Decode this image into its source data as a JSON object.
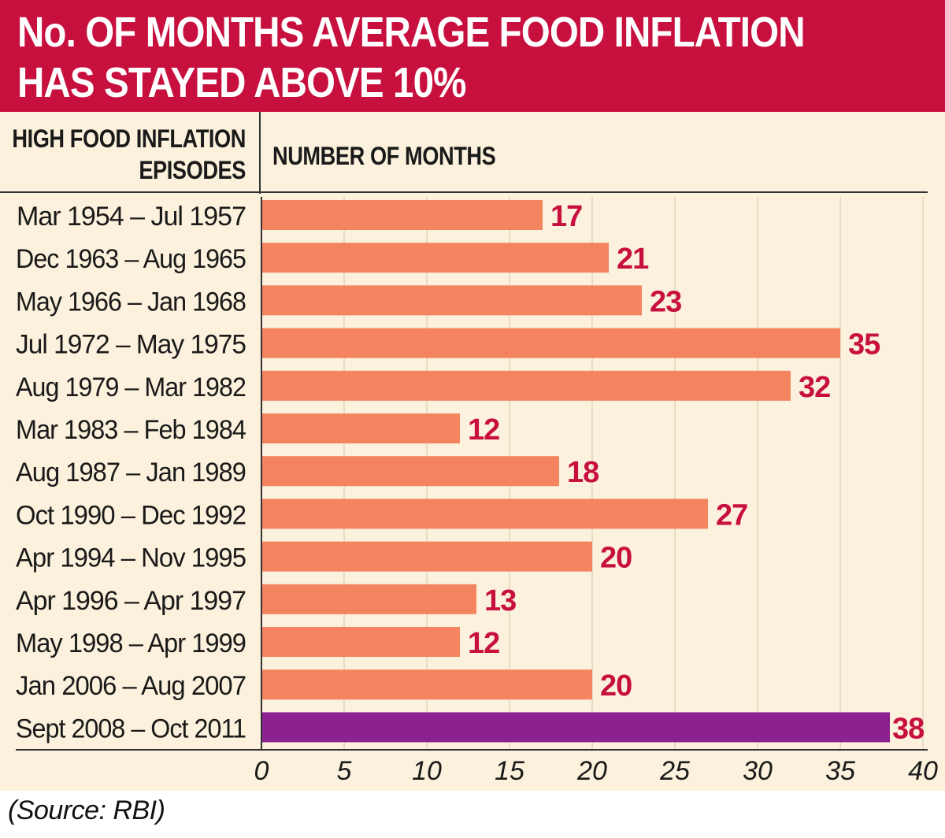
{
  "title": {
    "line1": "No. OF MONTHS AVERAGE FOOD INFLATION",
    "line2": "HAS STAYED ABOVE 10%"
  },
  "headers": {
    "left_line1": "HIGH FOOD INFLATION",
    "left_line2": "EPISODES",
    "right": "NUMBER OF MONTHS"
  },
  "source": "(Source: RBI)",
  "colors": {
    "banner": "#c8103f",
    "bar": "#f4845f",
    "highlight_bar": "#8c2290",
    "value_label": "#c8103f",
    "panel_bg": "#fbf1dc"
  },
  "chart_data": {
    "type": "bar",
    "orientation": "horizontal",
    "categories": [
      "Mar 1954 – Jul 1957",
      "Dec 1963 – Aug 1965",
      "May 1966 – Jan 1968",
      "Jul 1972 – May 1975",
      "Aug 1979 – Mar 1982",
      "Mar 1983 – Feb 1984",
      "Aug 1987 – Jan 1989",
      "Oct 1990 – Dec 1992",
      "Apr 1994 – Nov 1995",
      "Apr 1996 – Apr 1997",
      "May 1998 – Apr 1999",
      "Jan 2006 – Aug 2007",
      "Sept 2008 – Oct 2011"
    ],
    "values": [
      17,
      21,
      23,
      35,
      32,
      12,
      18,
      27,
      20,
      13,
      12,
      20,
      38
    ],
    "highlight_index": 12,
    "xlim": [
      0,
      40
    ],
    "xticks": [
      0,
      5,
      10,
      15,
      20,
      25,
      30,
      35,
      40
    ],
    "grid": true,
    "legend": "none"
  }
}
